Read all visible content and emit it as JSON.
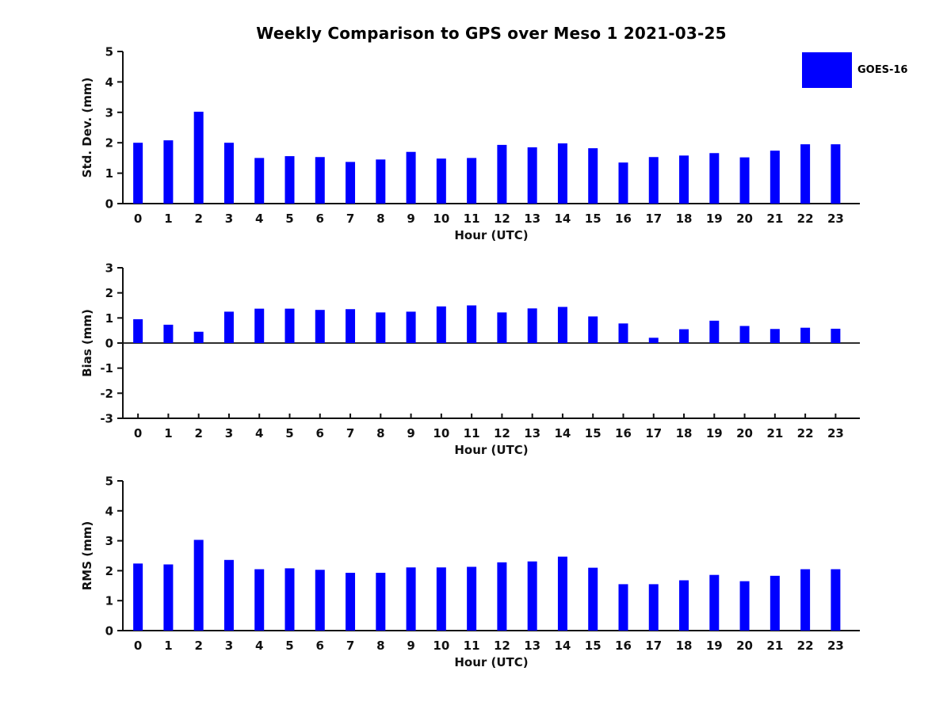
{
  "title": "Weekly Comparison to GPS over Meso 1 2021-03-25",
  "legend": {
    "label": "GOES-16",
    "color": "#0000ff",
    "position": "upper right"
  },
  "colors": {
    "bar": "#0000ff",
    "axis": "#111111",
    "background": "#ffffff"
  },
  "chart_data": [
    {
      "type": "bar",
      "name": "std-dev",
      "title": "Weekly Comparison to GPS over Meso 1 2021-03-25",
      "ylabel": "Std. Dev. (mm)",
      "xlabel": "Hour (UTC)",
      "ylim": [
        0,
        5
      ],
      "yticks": [
        0,
        1,
        2,
        3,
        4,
        5
      ],
      "grid": false,
      "legend_entries": [
        "GOES-16"
      ],
      "categories": [
        "0",
        "1",
        "2",
        "3",
        "4",
        "5",
        "6",
        "7",
        "8",
        "9",
        "10",
        "11",
        "12",
        "13",
        "14",
        "15",
        "16",
        "17",
        "18",
        "19",
        "20",
        "21",
        "22",
        "23"
      ],
      "values": [
        2.0,
        2.08,
        3.02,
        2.0,
        1.5,
        1.56,
        1.53,
        1.37,
        1.45,
        1.7,
        1.48,
        1.5,
        1.93,
        1.85,
        1.98,
        1.82,
        1.35,
        1.53,
        1.58,
        1.66,
        1.52,
        1.74,
        1.95,
        1.95
      ]
    },
    {
      "type": "bar",
      "name": "bias",
      "title": "",
      "ylabel": "Bias (mm)",
      "xlabel": "Hour (UTC)",
      "ylim": [
        -3,
        3
      ],
      "yticks": [
        -3,
        -2,
        -1,
        0,
        1,
        2,
        3
      ],
      "grid": false,
      "legend_entries": [
        "GOES-16"
      ],
      "categories": [
        "0",
        "1",
        "2",
        "3",
        "4",
        "5",
        "6",
        "7",
        "8",
        "9",
        "10",
        "11",
        "12",
        "13",
        "14",
        "15",
        "16",
        "17",
        "18",
        "19",
        "20",
        "21",
        "22",
        "23"
      ],
      "values": [
        0.95,
        0.73,
        0.45,
        1.25,
        1.37,
        1.37,
        1.32,
        1.35,
        1.22,
        1.25,
        1.46,
        1.5,
        1.22,
        1.38,
        1.44,
        1.06,
        0.78,
        0.21,
        0.55,
        0.89,
        0.68,
        0.56,
        0.61,
        0.57
      ]
    },
    {
      "type": "bar",
      "name": "rms",
      "title": "",
      "ylabel": "RMS (mm)",
      "xlabel": "Hour (UTC)",
      "ylim": [
        0,
        5
      ],
      "yticks": [
        0,
        1,
        2,
        3,
        4,
        5
      ],
      "grid": false,
      "legend_entries": [
        "GOES-16"
      ],
      "categories": [
        "0",
        "1",
        "2",
        "3",
        "4",
        "5",
        "6",
        "7",
        "8",
        "9",
        "10",
        "11",
        "12",
        "13",
        "14",
        "15",
        "16",
        "17",
        "18",
        "19",
        "20",
        "21",
        "22",
        "23"
      ],
      "values": [
        2.24,
        2.21,
        3.03,
        2.36,
        2.05,
        2.08,
        2.03,
        1.93,
        1.93,
        2.11,
        2.11,
        2.13,
        2.28,
        2.31,
        2.47,
        2.1,
        1.55,
        1.55,
        1.68,
        1.86,
        1.65,
        1.83,
        2.05,
        2.05
      ]
    }
  ]
}
